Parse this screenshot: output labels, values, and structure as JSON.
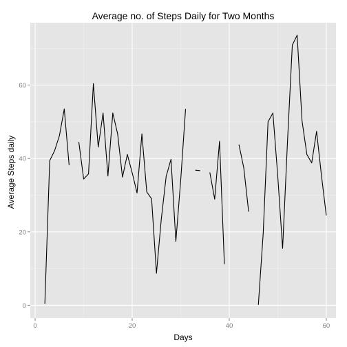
{
  "chart_data": {
    "type": "line",
    "title": "Average no. of Steps Daily for Two Months",
    "xlabel": "Days",
    "ylabel": "Average Steps daily",
    "xlim": [
      -1,
      62
    ],
    "ylim": [
      -3.5,
      77
    ],
    "x_ticks": [
      0,
      20,
      40,
      60
    ],
    "y_ticks": [
      0,
      20,
      40,
      60
    ],
    "grid": true,
    "colors": {
      "panel": "#e5e5e5",
      "grid_major": "#ffffff",
      "grid_minor": "#f2f2f2",
      "line": "#000000",
      "tick_text": "#7f7f7f"
    },
    "series": [
      {
        "x": [
          2,
          3,
          4,
          5,
          6,
          7,
          8,
          9,
          10,
          11,
          12,
          13,
          14,
          15,
          16,
          17,
          18,
          19,
          20,
          21,
          22,
          23,
          24,
          25,
          26,
          27,
          28,
          29,
          30,
          31,
          32,
          33,
          34,
          35,
          36,
          37,
          38,
          39,
          40,
          41,
          42,
          43,
          44,
          45,
          46,
          47,
          48,
          49,
          50,
          51,
          52,
          53,
          54,
          55,
          56,
          57,
          58,
          59,
          60
        ],
        "values": [
          0.4,
          39.4,
          42.1,
          46.2,
          53.5,
          38.2,
          null,
          44.5,
          34.4,
          35.8,
          60.4,
          43.1,
          52.4,
          35.2,
          52.4,
          46.7,
          34.9,
          41.1,
          36.1,
          30.6,
          46.7,
          30.9,
          29.0,
          8.7,
          23.5,
          35.1,
          39.8,
          17.4,
          34.1,
          53.5,
          null,
          36.8,
          36.7,
          null,
          36.2,
          28.9,
          44.7,
          11.2,
          null,
          null,
          43.8,
          37.4,
          25.5,
          null,
          0.1,
          19.6,
          50.0,
          52.4,
          35.2,
          15.5,
          44.4,
          70.9,
          73.6,
          50.3,
          41.1,
          38.8,
          47.4,
          35.4,
          24.5
        ]
      }
    ]
  }
}
